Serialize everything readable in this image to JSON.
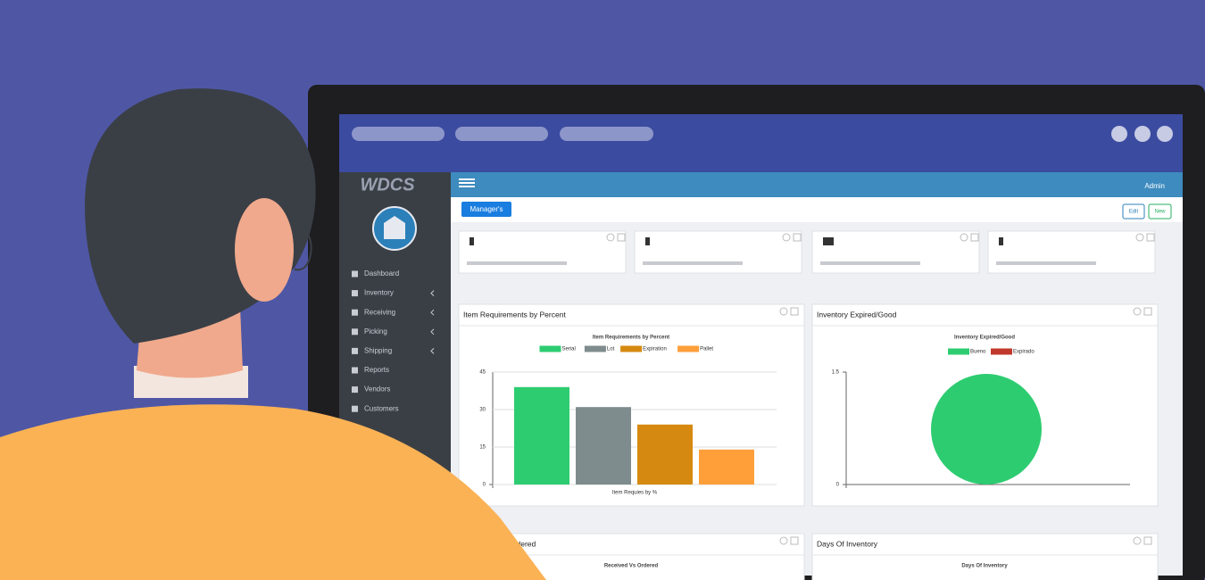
{
  "brand": "WDCS",
  "nav": [
    "Dashboard",
    "Inventory",
    "Receiving",
    "Picking",
    "Shipping",
    "Reports",
    "Vendors",
    "Customers"
  ],
  "header": {
    "user": "Admin",
    "tab": "Manager's",
    "edit": "Edit",
    "new": "New"
  },
  "chart_data": [
    {
      "type": "bar",
      "panel_title": "Item Requirements by Percent",
      "title": "Item Requirements by Percent",
      "x_label": "Item Requies by %",
      "categories": [
        null
      ],
      "series": [
        {
          "name": "Serial",
          "color": "#2ecc71",
          "values": [
            39
          ]
        },
        {
          "name": "Lot",
          "color": "#7f8c8d",
          "values": [
            31
          ]
        },
        {
          "name": "Expiration",
          "color": "#d68910",
          "values": [
            24
          ]
        },
        {
          "name": "Pallet",
          "color": "#ff9f3a",
          "values": [
            14
          ]
        }
      ],
      "ylim": [
        0,
        45
      ],
      "yticks": [
        0,
        15,
        30,
        45
      ],
      "grid": true
    },
    {
      "type": "pie",
      "panel_title": "Inventory Expired/Good",
      "title": "Inventory Expired/Good",
      "categories": [
        "Bueno",
        "Expirado"
      ],
      "values": [
        1,
        0
      ],
      "colors": [
        "#2ecc71",
        "#c0392b"
      ],
      "ylim": [
        0,
        1.5
      ],
      "yticks": [
        0,
        1.5
      ]
    }
  ],
  "lower_panels": [
    {
      "title": "Received Vs Ordered",
      "subtitle": "Received Vs Ordered"
    },
    {
      "title": "Days Of Inventory",
      "subtitle": "Days Of Inventory"
    }
  ]
}
